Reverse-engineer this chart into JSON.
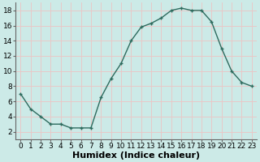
{
  "x": [
    0,
    1,
    2,
    3,
    4,
    5,
    6,
    7,
    8,
    9,
    10,
    11,
    12,
    13,
    14,
    15,
    16,
    17,
    18,
    19,
    20,
    21,
    22,
    23
  ],
  "y": [
    7,
    5,
    4,
    3,
    3,
    2.5,
    2.5,
    2.5,
    6.5,
    9,
    11,
    14,
    15.8,
    16.3,
    17,
    18,
    18.3,
    18,
    18,
    16.5,
    13,
    10,
    8.5,
    8
  ],
  "line_color": "#2e6b5e",
  "marker_color": "#2e6b5e",
  "bg_color": "#cceae7",
  "grid_color": "#e8c8c8",
  "xlabel": "Humidex (Indice chaleur)",
  "xlim": [
    -0.5,
    23.5
  ],
  "ylim": [
    1,
    19
  ],
  "yticks": [
    2,
    4,
    6,
    8,
    10,
    12,
    14,
    16,
    18
  ],
  "xticks": [
    0,
    1,
    2,
    3,
    4,
    5,
    6,
    7,
    8,
    9,
    10,
    11,
    12,
    13,
    14,
    15,
    16,
    17,
    18,
    19,
    20,
    21,
    22,
    23
  ],
  "font_size": 6.5,
  "xlabel_fontsize": 8,
  "marker_size": 3.5,
  "line_width": 1.0
}
